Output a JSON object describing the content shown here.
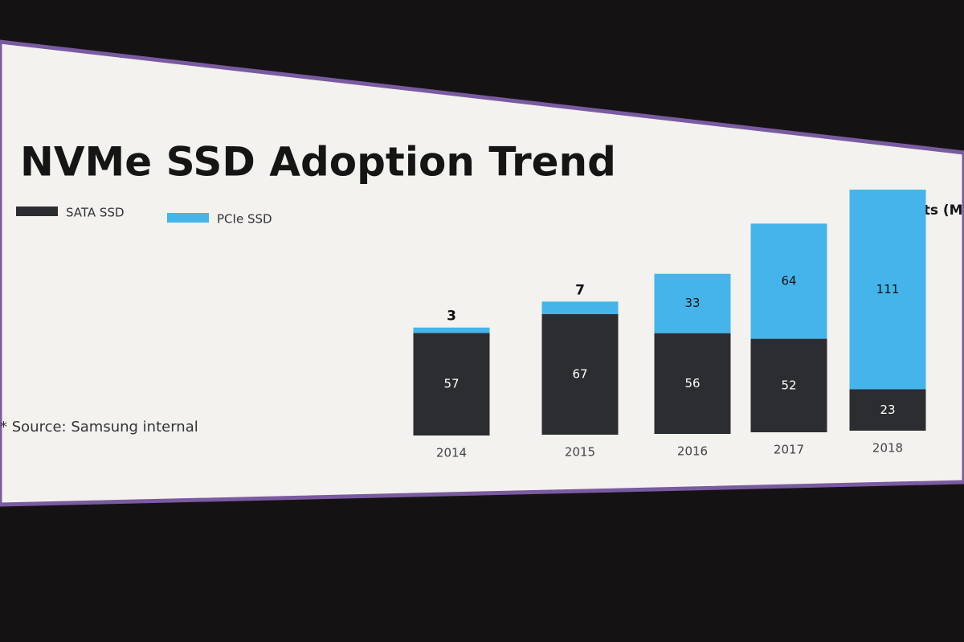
{
  "chart_data": {
    "type": "stacked_bar",
    "title": "NVMe SSD Adoption Trend",
    "unit_label": "Units (M)",
    "note": "* Source: Samsung internal",
    "categories": [
      "2014",
      "2015",
      "2016",
      "2017",
      "2018"
    ],
    "series": [
      {
        "name": "SATA SSD",
        "color": "#2b2d30",
        "values": [
          57,
          67,
          56,
          52,
          23
        ]
      },
      {
        "name": "PCIe SSD",
        "color": "#45b4ea",
        "values": [
          3,
          7,
          33,
          64,
          111
        ]
      }
    ]
  }
}
